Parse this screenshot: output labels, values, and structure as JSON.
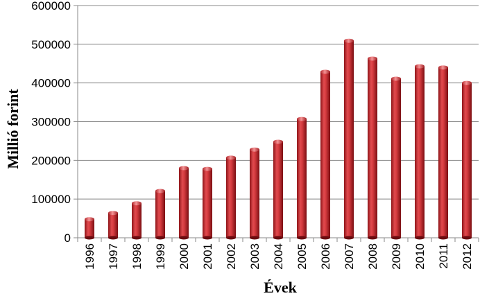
{
  "chart_data": {
    "type": "bar",
    "categories": [
      "1996",
      "1997",
      "1998",
      "1999",
      "2000",
      "2001",
      "2002",
      "2003",
      "2004",
      "2005",
      "2006",
      "2007",
      "2008",
      "2009",
      "2010",
      "2011",
      "2012"
    ],
    "values": [
      48000,
      64000,
      89000,
      121000,
      180000,
      178000,
      207000,
      228000,
      248000,
      307000,
      429000,
      509000,
      463000,
      411000,
      443000,
      440000,
      400000
    ],
    "title": "",
    "xlabel": "Évek",
    "ylabel": "Millió forint",
    "ylim": [
      0,
      600000
    ],
    "yticks": [
      "0",
      "100000",
      "200000",
      "300000",
      "400000",
      "500000",
      "600000"
    ],
    "grid": true,
    "bar_color": "#c0282c"
  }
}
